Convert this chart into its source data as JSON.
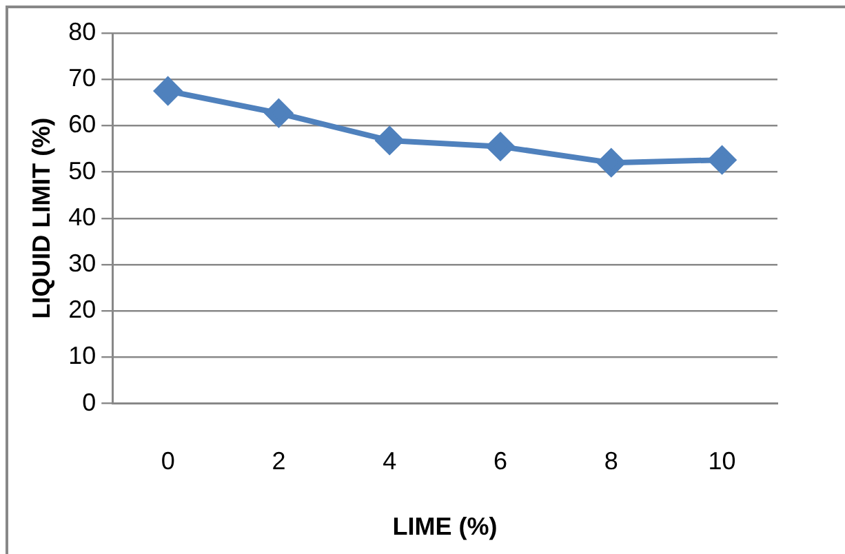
{
  "chart_data": {
    "type": "line",
    "xlabel": "LIME (%)",
    "ylabel": "LIQUID LIMIT (%)",
    "categories": [
      "0",
      "2",
      "4",
      "6",
      "8",
      "10"
    ],
    "series": [
      {
        "color": "#4f81bd",
        "values": [
          67.5,
          62.7,
          56.8,
          55.5,
          52.0,
          52.6
        ]
      }
    ],
    "ylim": [
      0,
      80
    ],
    "yticks": [
      0,
      10,
      20,
      30,
      40,
      50,
      60,
      70,
      80
    ],
    "grid": "y",
    "legend": false,
    "marker": "diamond",
    "line_style": "solid"
  }
}
